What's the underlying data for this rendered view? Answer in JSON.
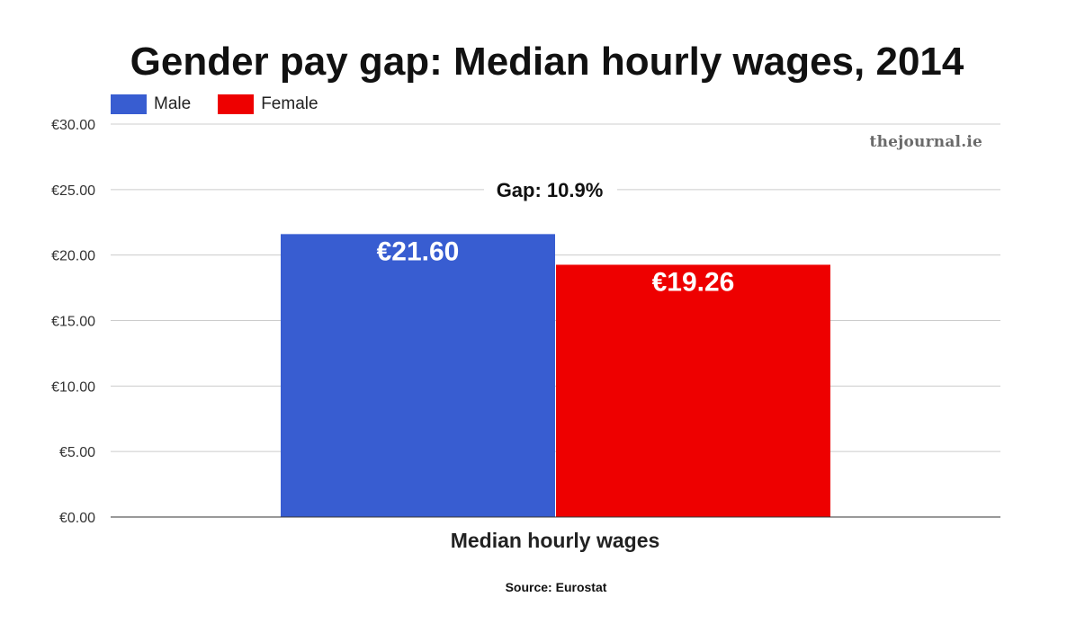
{
  "chart_data": {
    "type": "bar",
    "title": "Gender pay gap: Median hourly wages, 2014",
    "categories": [
      "Median hourly wages"
    ],
    "series": [
      {
        "name": "Male",
        "values": [
          21.6
        ],
        "label": "€21.60",
        "color": "#385dd1"
      },
      {
        "name": "Female",
        "values": [
          19.26
        ],
        "label": "€19.26",
        "color": "#ee0000"
      }
    ],
    "annotation": "Gap: 10.9%",
    "ylim": [
      0,
      30
    ],
    "y_ticks": [
      0,
      5,
      10,
      15,
      20,
      25,
      30
    ],
    "y_tick_labels": [
      "€0.00",
      "€5.00",
      "€10.00",
      "€15.00",
      "€20.00",
      "€25.00",
      "€30.00"
    ],
    "grid": true,
    "legend_position": "top-left",
    "source": "Source: Eurostat",
    "watermark": "thejournal.ie"
  }
}
